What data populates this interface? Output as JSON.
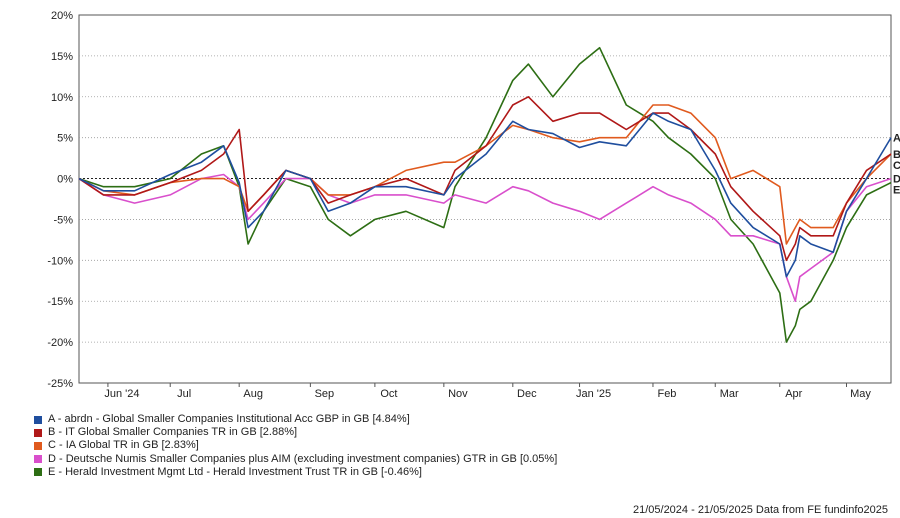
{
  "chart_data": {
    "type": "line",
    "footer": "21/05/2024 - 21/05/2025 Data from FE fundinfo2025",
    "x_range": [
      "2024-05-21",
      "2025-05-21"
    ],
    "xticks": [
      {
        "label": "Jun '24",
        "date": "2024-06-03"
      },
      {
        "label": "Jul",
        "date": "2024-07-01"
      },
      {
        "label": "Aug",
        "date": "2024-08-01"
      },
      {
        "label": "Sep",
        "date": "2024-09-02"
      },
      {
        "label": "Oct",
        "date": "2024-10-01"
      },
      {
        "label": "Nov",
        "date": "2024-11-01"
      },
      {
        "label": "Dec",
        "date": "2024-12-02"
      },
      {
        "label": "Jan '25",
        "date": "2025-01-01"
      },
      {
        "label": "Feb",
        "date": "2025-02-03"
      },
      {
        "label": "Mar",
        "date": "2025-03-03"
      },
      {
        "label": "Apr",
        "date": "2025-04-01"
      },
      {
        "label": "May",
        "date": "2025-05-01"
      }
    ],
    "yticks": [
      "20%",
      "15%",
      "10%",
      "5%",
      "0%",
      "-5%",
      "-10%",
      "-15%",
      "-20%",
      "-25%"
    ],
    "ylim": [
      -25,
      20
    ],
    "ylabel_unit": "%",
    "grid": "horizontal dotted",
    "zero_line": "dashed",
    "legend_position": "bottom-left",
    "series": [
      {
        "key": "A",
        "name": "A - abrdn - Global Smaller Companies Institutional Acc GBP in GB [4.84%]",
        "color": "#1f4e9e",
        "x": [
          "2024-05-21",
          "2024-06-01",
          "2024-06-15",
          "2024-07-01",
          "2024-07-15",
          "2024-07-25",
          "2024-08-01",
          "2024-08-05",
          "2024-08-12",
          "2024-08-22",
          "2024-09-02",
          "2024-09-10",
          "2024-09-20",
          "2024-10-01",
          "2024-10-15",
          "2024-11-01",
          "2024-11-06",
          "2024-11-20",
          "2024-12-02",
          "2024-12-09",
          "2024-12-20",
          "2025-01-01",
          "2025-01-10",
          "2025-01-22",
          "2025-02-03",
          "2025-02-10",
          "2025-02-20",
          "2025-03-03",
          "2025-03-10",
          "2025-03-20",
          "2025-04-01",
          "2025-04-04",
          "2025-04-08",
          "2025-04-10",
          "2025-04-15",
          "2025-04-25",
          "2025-05-01",
          "2025-05-10",
          "2025-05-21"
        ],
        "y": [
          0,
          -1.5,
          -1.5,
          0.5,
          2,
          4,
          -0.5,
          -6,
          -4,
          1,
          0,
          -4,
          -3,
          -1,
          -1,
          -2,
          0,
          3,
          7,
          6,
          5.5,
          3.8,
          4.5,
          4,
          8,
          7,
          6,
          1,
          -3,
          -6,
          -8,
          -12,
          -10,
          -7,
          -8,
          -9,
          -4,
          0,
          5
        ]
      },
      {
        "key": "B",
        "name": "B - IT Global Smaller Companies TR in GB [2.88%]",
        "color": "#b01818",
        "x": [
          "2024-05-21",
          "2024-06-01",
          "2024-06-15",
          "2024-07-01",
          "2024-07-15",
          "2024-07-25",
          "2024-08-01",
          "2024-08-05",
          "2024-08-12",
          "2024-08-22",
          "2024-09-02",
          "2024-09-10",
          "2024-09-20",
          "2024-10-01",
          "2024-10-15",
          "2024-11-01",
          "2024-11-06",
          "2024-11-20",
          "2024-12-02",
          "2024-12-09",
          "2024-12-20",
          "2025-01-01",
          "2025-01-10",
          "2025-01-22",
          "2025-02-03",
          "2025-02-10",
          "2025-02-20",
          "2025-03-03",
          "2025-03-10",
          "2025-03-20",
          "2025-04-01",
          "2025-04-04",
          "2025-04-08",
          "2025-04-10",
          "2025-04-15",
          "2025-04-25",
          "2025-05-01",
          "2025-05-10",
          "2025-05-21"
        ],
        "y": [
          0,
          -2,
          -2,
          -0.5,
          1,
          3,
          6,
          -4,
          -2,
          1,
          0,
          -3,
          -2,
          -1,
          0,
          -2,
          1,
          4,
          9,
          10,
          7,
          8,
          8,
          6,
          8,
          8,
          6,
          3,
          -1,
          -4,
          -7,
          -10,
          -8,
          -6,
          -7,
          -7,
          -3,
          1,
          3
        ]
      },
      {
        "key": "C",
        "name": "C - IA Global TR in GB [2.83%]",
        "color": "#e05a1e",
        "x": [
          "2024-05-21",
          "2024-06-01",
          "2024-06-15",
          "2024-07-01",
          "2024-07-15",
          "2024-07-25",
          "2024-08-01",
          "2024-08-05",
          "2024-08-12",
          "2024-08-22",
          "2024-09-02",
          "2024-09-10",
          "2024-09-20",
          "2024-10-01",
          "2024-10-15",
          "2024-11-01",
          "2024-11-06",
          "2024-11-20",
          "2024-12-02",
          "2024-12-09",
          "2024-12-20",
          "2025-01-01",
          "2025-01-10",
          "2025-01-22",
          "2025-02-03",
          "2025-02-10",
          "2025-02-20",
          "2025-03-03",
          "2025-03-10",
          "2025-03-20",
          "2025-04-01",
          "2025-04-04",
          "2025-04-08",
          "2025-04-10",
          "2025-04-15",
          "2025-04-25",
          "2025-05-01",
          "2025-05-10",
          "2025-05-21"
        ],
        "y": [
          0,
          -1.5,
          -2,
          -0.5,
          0,
          0,
          -1,
          -4,
          -2,
          1,
          0,
          -2,
          -2,
          -1,
          1,
          2,
          2,
          4,
          6.5,
          6,
          5,
          4.5,
          5,
          5,
          9,
          9,
          8,
          5,
          0,
          1,
          -1,
          -8,
          -6,
          -5,
          -6,
          -6,
          -3,
          0,
          3
        ]
      },
      {
        "key": "D",
        "name": "D - Deutsche Numis Smaller Companies plus AIM (excluding investment companies) GTR in GB [0.05%]",
        "color": "#d94fcc",
        "x": [
          "2024-05-21",
          "2024-06-01",
          "2024-06-15",
          "2024-07-01",
          "2024-07-15",
          "2024-07-25",
          "2024-08-01",
          "2024-08-05",
          "2024-08-12",
          "2024-08-22",
          "2024-09-02",
          "2024-09-10",
          "2024-09-20",
          "2024-10-01",
          "2024-10-15",
          "2024-11-01",
          "2024-11-06",
          "2024-11-20",
          "2024-12-02",
          "2024-12-09",
          "2024-12-20",
          "2025-01-01",
          "2025-01-10",
          "2025-01-22",
          "2025-02-03",
          "2025-02-10",
          "2025-02-20",
          "2025-03-03",
          "2025-03-10",
          "2025-03-20",
          "2025-04-01",
          "2025-04-04",
          "2025-04-08",
          "2025-04-10",
          "2025-04-15",
          "2025-04-25",
          "2025-05-01",
          "2025-05-10",
          "2025-05-21"
        ],
        "y": [
          0,
          -2,
          -3,
          -2,
          0,
          0.5,
          -1,
          -5,
          -3,
          0,
          0,
          -2,
          -3,
          -2,
          -2,
          -3,
          -2,
          -3,
          -1,
          -1.5,
          -3,
          -4,
          -5,
          -3,
          -1,
          -2,
          -3,
          -5,
          -7,
          -7,
          -8,
          -12,
          -15,
          -12,
          -11,
          -9,
          -4,
          -1,
          0
        ]
      },
      {
        "key": "E",
        "name": "E - Herald Investment Mgmt Ltd - Herald Investment Trust TR in GB [-0.46%]",
        "color": "#2d6e14",
        "x": [
          "2024-05-21",
          "2024-06-01",
          "2024-06-15",
          "2024-07-01",
          "2024-07-15",
          "2024-07-25",
          "2024-08-01",
          "2024-08-05",
          "2024-08-12",
          "2024-08-22",
          "2024-09-02",
          "2024-09-10",
          "2024-09-20",
          "2024-10-01",
          "2024-10-15",
          "2024-11-01",
          "2024-11-06",
          "2024-11-20",
          "2024-12-02",
          "2024-12-09",
          "2024-12-20",
          "2025-01-01",
          "2025-01-10",
          "2025-01-22",
          "2025-02-03",
          "2025-02-10",
          "2025-02-20",
          "2025-03-03",
          "2025-03-10",
          "2025-03-20",
          "2025-04-01",
          "2025-04-04",
          "2025-04-08",
          "2025-04-10",
          "2025-04-15",
          "2025-04-25",
          "2025-05-01",
          "2025-05-10",
          "2025-05-21"
        ],
        "y": [
          0,
          -1,
          -1,
          0,
          3,
          4,
          -1,
          -8,
          -4,
          0,
          -1,
          -5,
          -7,
          -5,
          -4,
          -6,
          -1,
          5,
          12,
          14,
          10,
          14,
          16,
          9,
          7,
          5,
          3,
          0,
          -5,
          -8,
          -14,
          -20,
          -18,
          -16,
          -15,
          -10,
          -6,
          -2,
          -0.5
        ]
      }
    ]
  }
}
